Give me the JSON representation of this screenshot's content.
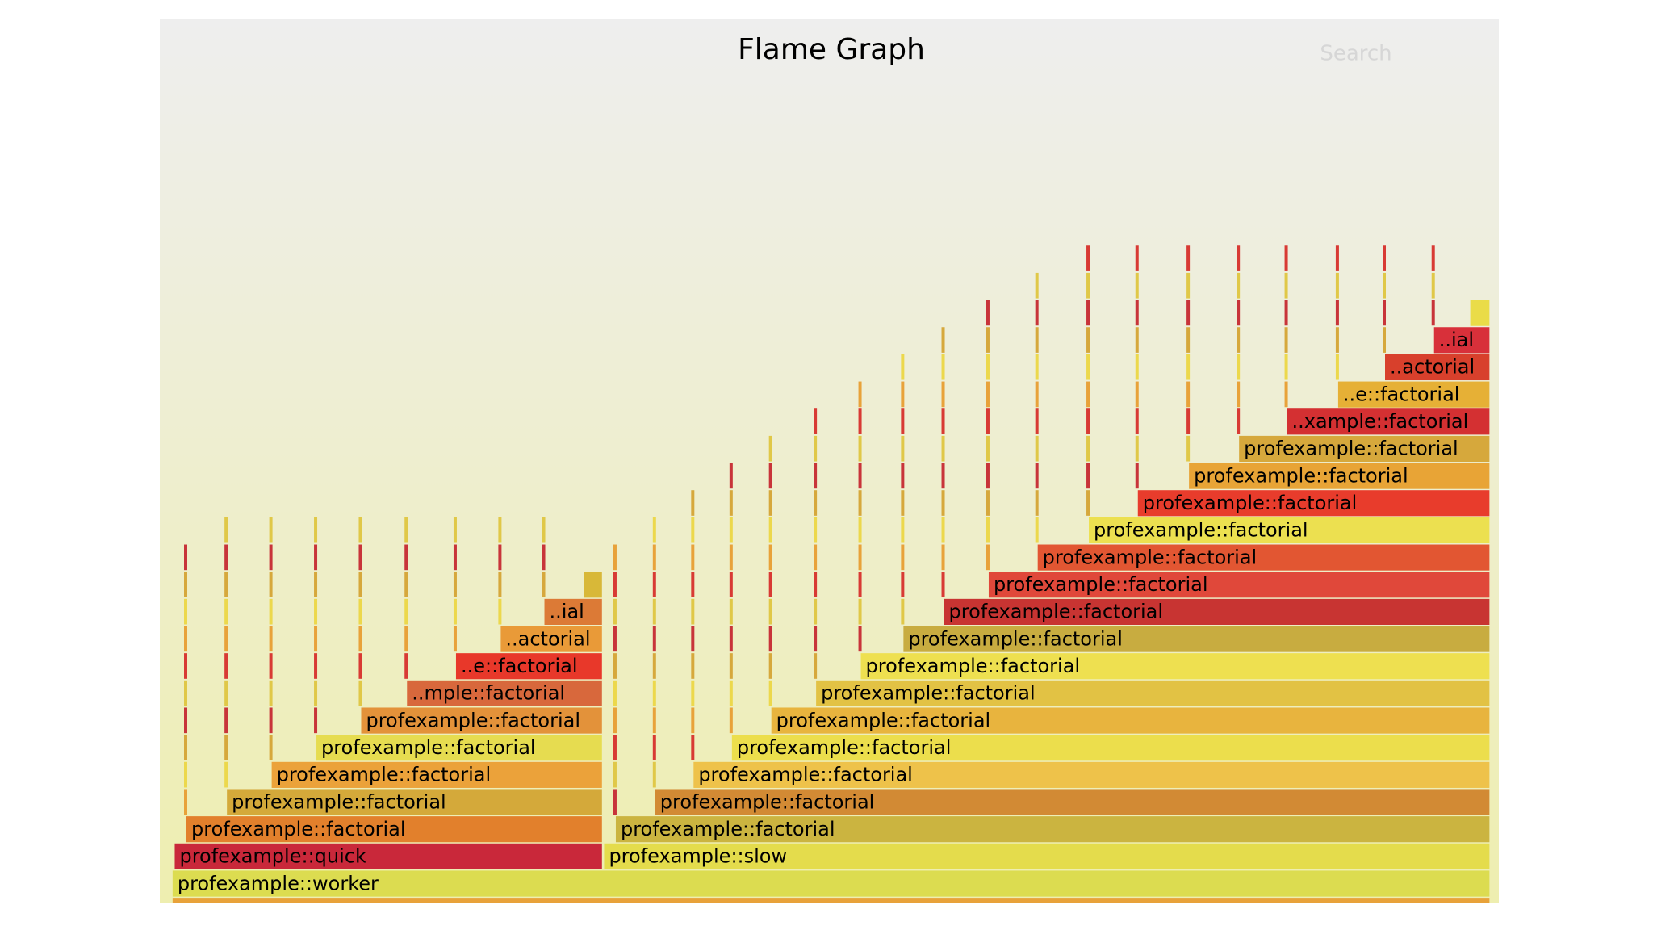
{
  "header": {
    "title": "Flame Graph",
    "search": "Search"
  },
  "frames": [
    {
      "label": "profexample::worker"
    },
    {
      "label": "profexample::quick"
    },
    {
      "label": "profexample::factorial"
    },
    {
      "label": "profexample::factorial"
    },
    {
      "label": "profexample::factorial"
    },
    {
      "label": "profexample::factorial"
    },
    {
      "label": "profexample::factorial"
    },
    {
      "label": "..mple::factorial"
    },
    {
      "label": "..e::factorial"
    },
    {
      "label": "..actorial"
    },
    {
      "label": "..ial"
    },
    {
      "label": "profexample::slow"
    },
    {
      "label": "profexample::factorial"
    },
    {
      "label": "profexample::factorial"
    },
    {
      "label": "profexample::factorial"
    },
    {
      "label": "profexample::factorial"
    },
    {
      "label": "profexample::factorial"
    },
    {
      "label": "profexample::factorial"
    },
    {
      "label": "profexample::factorial"
    },
    {
      "label": "profexample::factorial"
    },
    {
      "label": "profexample::factorial"
    },
    {
      "label": "profexample::factorial"
    },
    {
      "label": "profexample::factorial"
    },
    {
      "label": "profexample::factorial"
    },
    {
      "label": "profexample::factorial"
    },
    {
      "label": "profexample::factorial"
    },
    {
      "label": "profexample::factorial"
    },
    {
      "label": "..xample::factorial"
    },
    {
      "label": "..e::factorial"
    },
    {
      "label": "..actorial"
    },
    {
      "label": "..ial"
    }
  ]
}
